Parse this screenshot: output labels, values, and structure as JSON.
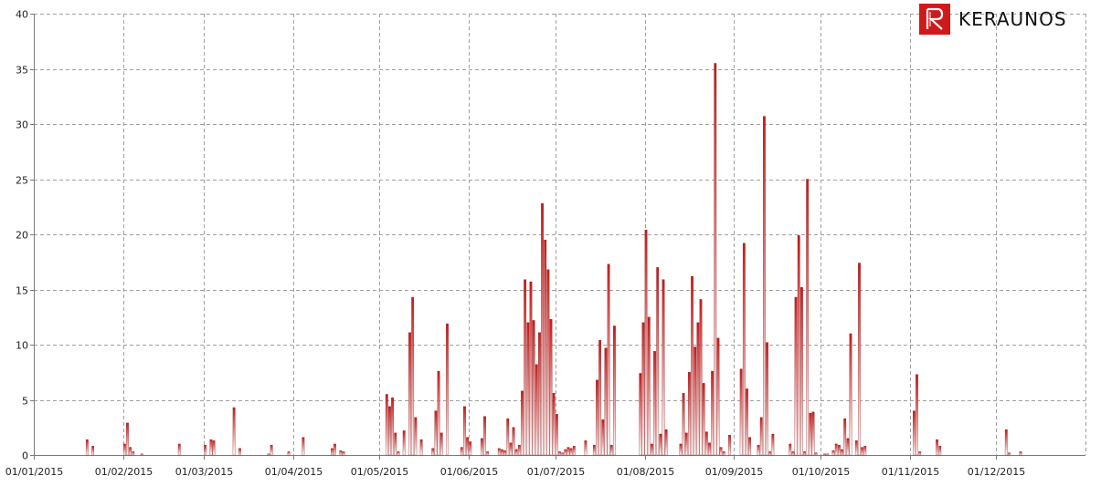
{
  "logo": {
    "text": "KERAUNOS"
  },
  "colors": {
    "bar_top": "#c41a1a",
    "bar_bottom": "#ffffff",
    "bar_edge": "#8b1010",
    "grid": "#a0a0a0",
    "axis": "#7a7a7a"
  },
  "chart_data": {
    "type": "bar",
    "title": "",
    "xlabel": "",
    "ylabel": "",
    "ylim": [
      0,
      40
    ],
    "yticks": [
      "0",
      "5",
      "10",
      "15",
      "20",
      "25",
      "30",
      "35",
      "40"
    ],
    "xticks": [
      "01/01/2015",
      "01/02/2015",
      "01/03/2015",
      "01/04/2015",
      "01/05/2015",
      "01/06/2015",
      "01/07/2015",
      "01/08/2015",
      "01/09/2015",
      "01/10/2015",
      "01/11/2015",
      "01/12/2015"
    ],
    "grid": true,
    "x_start": "2015-01-01",
    "values": [
      0,
      0,
      0,
      0,
      0,
      0,
      0,
      0,
      0,
      0,
      0,
      0,
      0,
      0,
      0,
      0,
      0,
      0,
      1.4,
      0,
      0.8,
      0,
      0,
      0,
      0,
      0,
      0,
      0,
      0,
      0,
      0,
      1.0,
      2.9,
      0.7,
      0.3,
      0,
      0,
      0.1,
      0,
      0,
      0,
      0,
      0,
      0,
      0,
      0,
      0,
      0,
      0,
      0,
      1.0,
      0,
      0,
      0,
      0,
      0,
      0,
      0,
      0,
      0.9,
      0,
      1.4,
      1.3,
      0,
      0,
      0,
      0,
      0,
      0,
      4.3,
      0,
      0.6,
      0,
      0,
      0,
      0,
      0,
      0,
      0,
      0,
      0,
      0.1,
      0.9,
      0,
      0,
      0,
      0,
      0,
      0.3,
      0,
      0,
      0,
      0,
      1.6,
      0,
      0,
      0,
      0,
      0,
      0,
      0,
      0,
      0,
      0.6,
      1.0,
      0,
      0.4,
      0.3,
      0,
      0,
      0,
      0,
      0,
      0,
      0,
      0,
      0,
      0,
      0,
      0,
      0,
      0,
      5.5,
      4.4,
      5.2,
      2.0,
      0.3,
      0,
      2.2,
      0,
      11.1,
      14.3,
      3.4,
      0,
      1.4,
      0,
      0,
      0,
      0.6,
      4.0,
      7.6,
      2.0,
      0,
      11.9,
      0,
      0,
      0,
      0,
      0.7,
      4.4,
      1.6,
      1.2,
      0,
      0,
      0,
      1.5,
      3.5,
      0.3,
      0,
      0,
      0,
      0.6,
      0.5,
      0.4,
      3.3,
      1.1,
      2.5,
      0.5,
      0.9,
      5.8,
      15.9,
      12.0,
      15.7,
      12.2,
      8.2,
      11.1,
      22.8,
      19.5,
      16.8,
      12.3,
      5.6,
      3.7,
      0.3,
      0.2,
      0.5,
      0.7,
      0.6,
      0.8,
      0,
      0,
      0,
      1.3,
      0,
      0,
      0.9,
      6.8,
      10.4,
      3.2,
      9.7,
      17.3,
      0.9,
      11.7,
      0,
      0,
      0,
      0,
      0,
      0,
      0,
      0,
      7.4,
      12.0,
      20.4,
      12.5,
      1.0,
      9.4,
      17.0,
      1.9,
      15.9,
      2.3,
      0,
      0,
      0,
      0,
      1.0,
      5.6,
      2.0,
      7.5,
      16.2,
      9.8,
      12.0,
      14.1,
      6.5,
      2.1,
      1.1,
      7.6,
      35.5,
      10.6,
      0.7,
      0.3,
      0,
      1.8,
      0,
      0,
      0,
      7.8,
      19.2,
      6.0,
      1.6,
      0,
      0,
      0.9,
      3.4,
      30.7,
      10.2,
      0.3,
      1.9,
      0,
      0,
      0,
      0,
      0,
      1.0,
      0.3,
      14.3,
      19.9,
      15.2,
      0.3,
      25.0,
      3.8,
      3.9,
      0.2,
      0,
      0,
      0.1,
      0.1,
      0,
      0.4,
      1.0,
      0.9,
      0.5,
      3.3,
      1.5,
      11.0,
      0,
      1.3,
      17.4,
      0.7,
      0.8,
      0,
      0,
      0,
      0,
      0,
      0,
      0,
      0,
      0,
      0,
      0,
      0,
      0,
      0,
      0,
      0,
      4.0,
      7.3,
      0.3,
      0,
      0,
      0,
      0,
      0,
      1.4,
      0.8,
      0,
      0,
      0,
      0,
      0,
      0,
      0,
      0,
      0,
      0,
      0,
      0,
      0,
      0,
      0,
      0,
      0,
      0,
      0,
      0,
      0,
      0,
      2.3,
      0.2,
      0,
      0,
      0,
      0.3,
      0,
      0,
      0,
      0,
      0,
      0,
      0,
      0,
      0,
      0,
      0,
      0,
      0,
      0,
      0,
      0,
      0,
      0,
      0,
      0,
      0,
      0,
      0,
      0,
      0
    ]
  }
}
